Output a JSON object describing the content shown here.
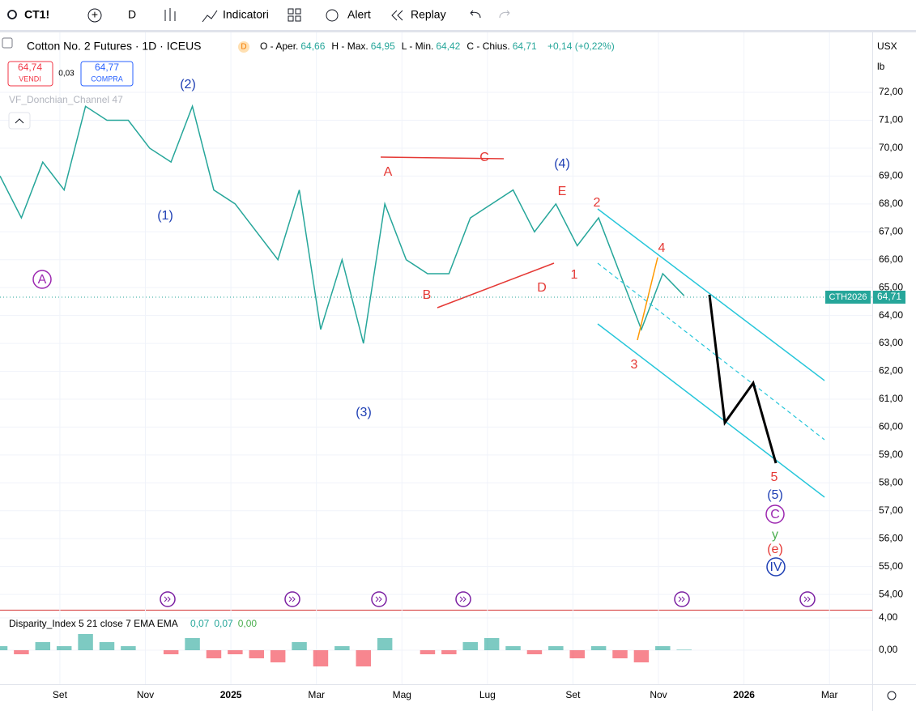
{
  "toolbar": {
    "symbol": "CT1!",
    "interval": "D",
    "indicators": "Indicatori",
    "alert": "Alert",
    "replay": "Replay"
  },
  "legend": {
    "title": "Cotton No. 2 Futures · 1D · ICEUS",
    "badge": "D",
    "ohlc": [
      {
        "name": "O - Aper.",
        "value": "64,66"
      },
      {
        "name": "H - Max.",
        "value": "64,95"
      },
      {
        "name": "L - Min.",
        "value": "64,42"
      },
      {
        "name": "C - Chius.",
        "value": "64,71"
      }
    ],
    "change": "+0,14 (+0,22%)",
    "sell": {
      "price": "64,74",
      "label": "VENDI"
    },
    "spread": "0,03",
    "buy": {
      "price": "64,77",
      "label": "COMPRA"
    },
    "indicator": "VF_Donchian_Channel 47"
  },
  "price_scale": {
    "currency": "USX",
    "unit": "lb",
    "symbol_label": "CTH2026",
    "last": "64,71"
  },
  "annotations": [
    "A",
    "(2)",
    "(1)",
    "A",
    "C",
    "(4)",
    "E",
    "2",
    "4",
    "1",
    "B",
    "D",
    "3",
    "(3)",
    "5",
    "(5)",
    "C",
    "y",
    "(e)",
    "IV"
  ],
  "chart_data": [
    {
      "type": "line",
      "color": "#26a69a",
      "x": [
        -0.4,
        0.1,
        0.6,
        1.1,
        1.6,
        2.1,
        2.6,
        3.1,
        3.6,
        4.1,
        4.6,
        5.1,
        5.6,
        6.1,
        6.6,
        7.1,
        7.6,
        8.1,
        8.6,
        9.1,
        9.6,
        10.1,
        10.6,
        11.1,
        11.6,
        12.1,
        12.6,
        13.1,
        13.6,
        14.1,
        14.6,
        15.1,
        15.6
      ],
      "values": [
        69,
        67.5,
        69.5,
        68.5,
        71.5,
        71,
        71,
        70,
        69.5,
        71.5,
        68.5,
        68,
        67,
        66,
        68.5,
        63.5,
        66,
        63,
        68,
        66,
        65.5,
        65.5,
        67.5,
        68,
        68.5,
        67,
        68,
        66.5,
        67.5,
        65.5,
        63.5,
        65.5,
        64.71
      ],
      "xlim": [
        -0.4,
        20.0
      ],
      "ylim": [
        53.48,
        74.15
      ],
      "xticks": [
        {
          "value": 1,
          "label": "Set"
        },
        {
          "value": 3,
          "label": "Nov"
        },
        {
          "value": 5,
          "label": "2025"
        },
        {
          "value": 7,
          "label": "Mar"
        },
        {
          "value": 9,
          "label": "Mag"
        },
        {
          "value": 11,
          "label": "Lug"
        },
        {
          "value": 13,
          "label": "Set"
        },
        {
          "value": 15,
          "label": "Nov"
        },
        {
          "value": 17,
          "label": "2026"
        },
        {
          "value": 19,
          "label": "Mar"
        }
      ],
      "yticks": [
        {
          "value": 54,
          "label": "54,00"
        },
        {
          "value": 55,
          "label": "55,00"
        },
        {
          "value": 56,
          "label": "56,00"
        },
        {
          "value": 57,
          "label": "57,00"
        },
        {
          "value": 58,
          "label": "58,00"
        },
        {
          "value": 59,
          "label": "59,00"
        },
        {
          "value": 60,
          "label": "60,00"
        },
        {
          "value": 61,
          "label": "61,00"
        },
        {
          "value": 62,
          "label": "62,00"
        },
        {
          "value": 63,
          "label": "63,00"
        },
        {
          "value": 64,
          "label": "64,00"
        },
        {
          "value": 65,
          "label": "65,00"
        },
        {
          "value": 66,
          "label": "66,00"
        },
        {
          "value": 67,
          "label": "67,00"
        },
        {
          "value": 68,
          "label": "68,00"
        },
        {
          "value": 69,
          "label": "69,00"
        },
        {
          "value": 70,
          "label": "70,00"
        },
        {
          "value": 71,
          "label": "71,00"
        },
        {
          "value": 72,
          "label": "72,00"
        }
      ],
      "grid": true
    },
    {
      "type": "bar",
      "title": "Disparity_Index 5 21 close 7 EMA EMA",
      "legend_values": [
        "0,07",
        "0,07",
        "0,00"
      ],
      "x": [
        -0.4,
        0.1,
        0.6,
        1.1,
        1.6,
        2.1,
        2.6,
        3.1,
        3.6,
        4.1,
        4.6,
        5.1,
        5.6,
        6.1,
        6.6,
        7.1,
        7.6,
        8.1,
        8.6,
        9.1,
        9.6,
        10.1,
        10.6,
        11.1,
        11.6,
        12.1,
        12.6,
        13.1,
        13.6,
        14.1,
        14.6,
        15.1,
        15.6
      ],
      "values": [
        0.5,
        -0.5,
        1,
        0.5,
        2,
        1,
        0.5,
        0,
        -0.5,
        1.5,
        -1,
        -0.5,
        -1,
        -1.5,
        1,
        -2,
        0.5,
        -2,
        1.5,
        0,
        -0.5,
        -0.5,
        1,
        1.5,
        0.5,
        -0.5,
        0.5,
        -1,
        0.5,
        -1,
        -1.5,
        0.5,
        0.07
      ],
      "xlim": [
        -0.4,
        20.0
      ],
      "ylim": [
        -4.2,
        4.8
      ],
      "yticks": [
        {
          "value": 0,
          "label": "0,00"
        },
        {
          "value": 4,
          "label": "4,00"
        }
      ],
      "colors": {
        "up": "#26a69a",
        "down": "#f23645"
      }
    }
  ]
}
